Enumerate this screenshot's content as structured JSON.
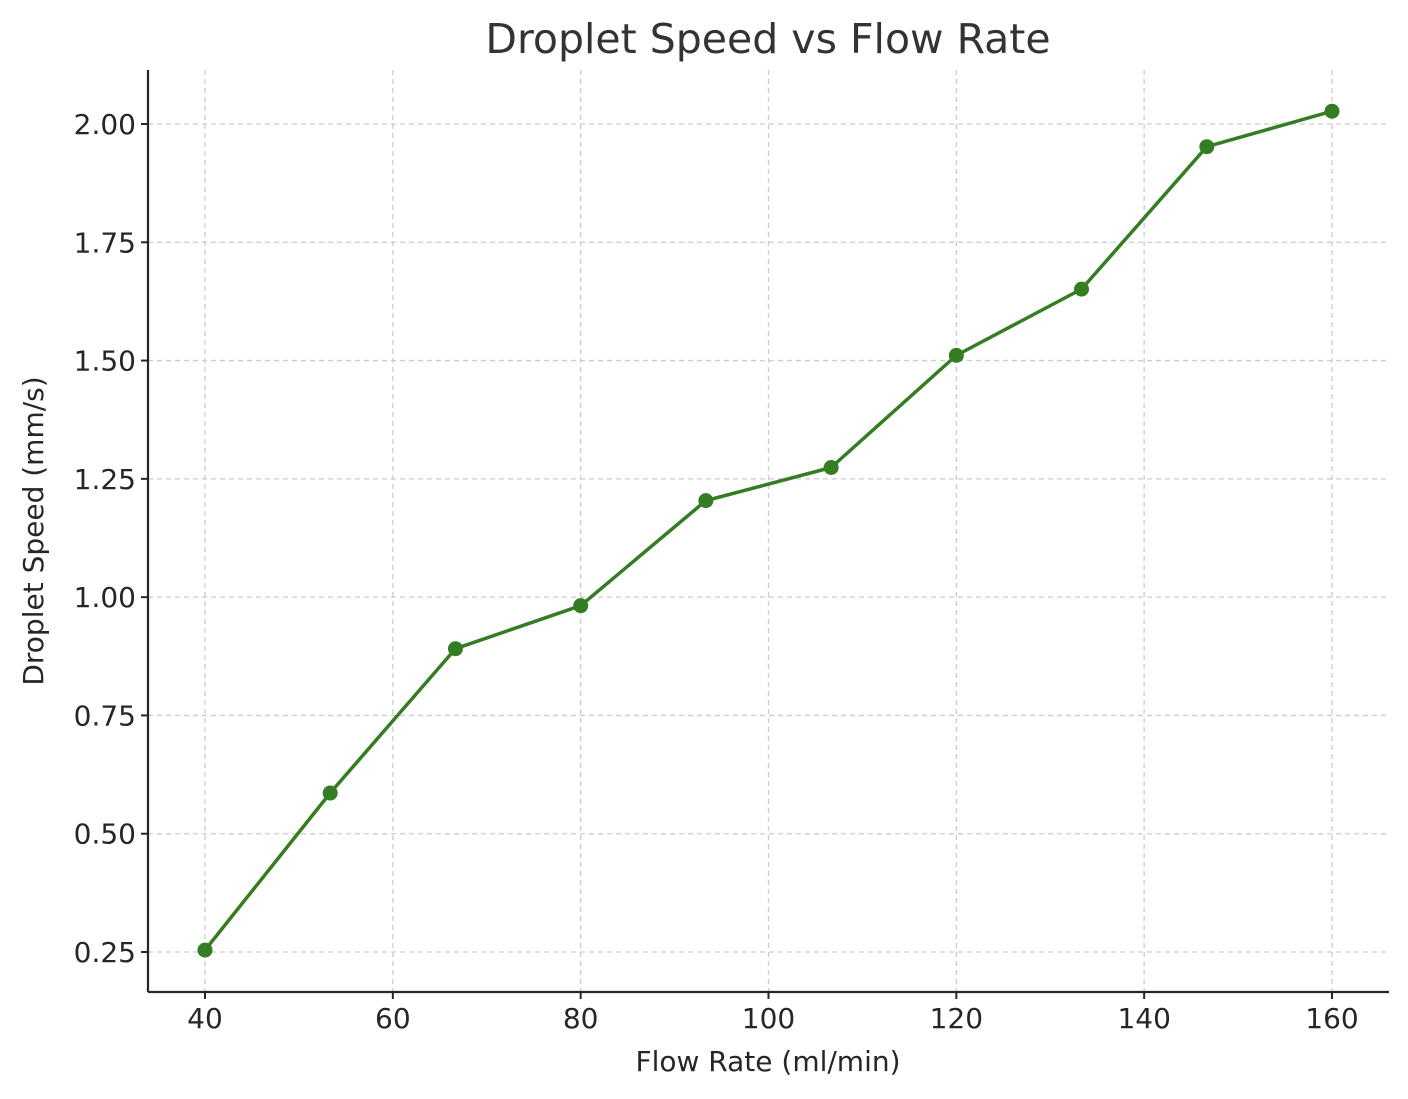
{
  "chart_data": {
    "type": "line",
    "title": "Droplet Speed vs Flow Rate",
    "xlabel": "Flow Rate (ml/min)",
    "ylabel": "Droplet Speed (mm/s)",
    "xlim": [
      34,
      160
    ],
    "ylim": [
      0.17,
      2.12
    ],
    "xticks": [
      40,
      60,
      80,
      100,
      120,
      140,
      160
    ],
    "xtick_labels": [
      "40",
      "60",
      "80",
      "100",
      "120",
      "140",
      "160"
    ],
    "yticks": [
      0.25,
      0.5,
      0.75,
      1.0,
      1.25,
      1.5,
      1.75,
      2.0
    ],
    "ytick_labels": [
      "0.25",
      "0.50",
      "0.75",
      "1.00",
      "1.25",
      "1.50",
      "1.75",
      "2.00"
    ],
    "grid": true,
    "series": [
      {
        "color": "#347d23",
        "marker": "circle",
        "x": [
          40,
          53.33,
          66.67,
          80,
          93.33,
          106.67,
          120,
          133.33,
          146.67,
          160
        ],
        "y": [
          0.254,
          0.586,
          0.891,
          0.982,
          1.204,
          1.274,
          1.511,
          1.651,
          1.952,
          2.027
        ]
      }
    ]
  }
}
